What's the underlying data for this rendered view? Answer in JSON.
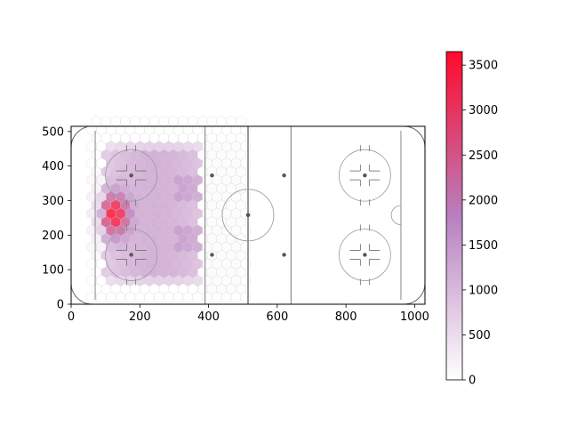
{
  "chart_data": {
    "type": "heatmap",
    "subtype": "hexbin",
    "title": "",
    "xlabel": "",
    "ylabel": "",
    "xlim": [
      0,
      1030
    ],
    "ylim": [
      0,
      515
    ],
    "x_ticks": [
      0,
      200,
      400,
      600,
      800,
      1000
    ],
    "y_ticks": [
      0,
      100,
      200,
      300,
      400,
      500
    ],
    "x_tick_labels": [
      "0",
      "200",
      "400",
      "600",
      "800",
      "1000"
    ],
    "y_tick_labels": [
      "0",
      "100",
      "200",
      "300",
      "400",
      "500"
    ],
    "grid": false,
    "background": "ice-hockey-rink",
    "colorbar": {
      "min": 0,
      "max": 3650,
      "ticks": [
        0,
        500,
        1000,
        1500,
        2000,
        2500,
        3000,
        3500
      ],
      "tick_labels": [
        "0",
        "500",
        "1000",
        "1500",
        "2000",
        "2500",
        "3000",
        "3500"
      ],
      "colors": [
        "#ffffff",
        "#b87fbf",
        "#ff0a2a"
      ],
      "placement": "right"
    },
    "hex_cell_width": 28,
    "hotspot": {
      "x": 125,
      "y": 260,
      "value": 3650
    },
    "rink": {
      "x_range": [
        0,
        1030
      ],
      "y_range": [
        0,
        515
      ],
      "goal_lines_x": [
        70,
        960
      ],
      "blue_lines_x": [
        390,
        640
      ],
      "center_line_x": 515,
      "center_faceoff": [
        515,
        258
      ],
      "faceoff_circles": [
        [
          175,
          373
        ],
        [
          175,
          143
        ],
        [
          855,
          373
        ],
        [
          855,
          143
        ]
      ],
      "neutral_dots": [
        [
          410,
          373
        ],
        [
          410,
          143
        ],
        [
          620,
          373
        ],
        [
          620,
          143
        ]
      ]
    }
  }
}
